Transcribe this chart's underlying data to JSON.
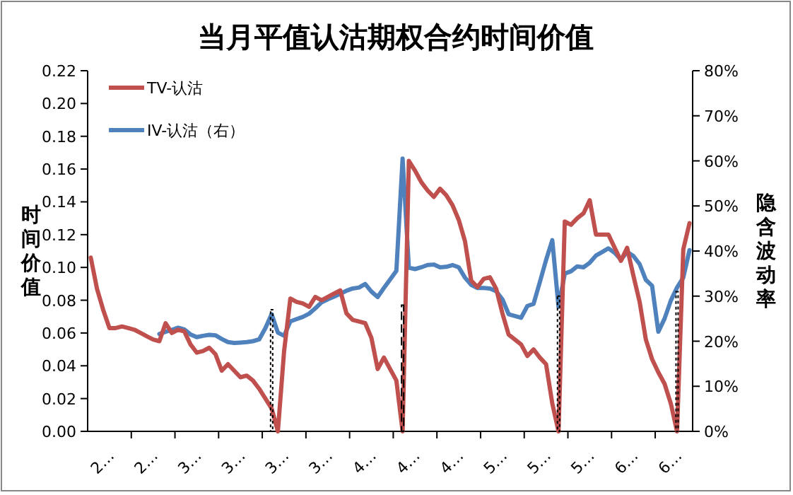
{
  "chart_data": {
    "type": "line",
    "title": "当月平值认沽期权合约时间价值",
    "ylabel": "时间价值",
    "y2label": "隐含波动率",
    "legend": "top left",
    "categories": [
      null,
      null,
      null,
      "2…",
      null,
      null,
      null,
      null,
      null,
      null,
      "2…",
      null,
      null,
      null,
      null,
      null,
      null,
      "3…",
      null,
      null,
      null,
      null,
      null,
      null,
      "3…",
      null,
      null,
      null,
      null,
      null,
      null,
      "3…",
      null,
      null,
      null,
      null,
      null,
      null,
      "3…",
      null,
      null,
      null,
      null,
      null,
      null,
      "4…",
      null,
      null,
      null,
      null,
      null,
      null,
      "4…",
      null,
      null,
      null,
      null,
      null,
      null,
      "4…",
      null,
      null,
      null,
      null,
      null,
      null,
      "5…",
      null,
      null,
      null,
      null,
      null,
      null,
      "5…",
      null,
      null,
      null,
      null,
      null,
      null,
      "5…",
      null,
      null,
      null,
      null,
      null,
      null,
      "6…",
      null,
      null,
      null,
      null,
      null,
      null,
      "6…",
      null,
      null
    ],
    "ylim": [
      0,
      0.22
    ],
    "yticks": [
      {
        "value": 0,
        "label": "0.00"
      },
      {
        "value": 0.02,
        "label": "0.02"
      },
      {
        "value": 0.04,
        "label": "0.04"
      },
      {
        "value": 0.06,
        "label": "0.06"
      },
      {
        "value": 0.08,
        "label": "0.08"
      },
      {
        "value": 0.1,
        "label": "0.10"
      },
      {
        "value": 0.12,
        "label": "0.12"
      },
      {
        "value": 0.14,
        "label": "0.14"
      },
      {
        "value": 0.16,
        "label": "0.16"
      },
      {
        "value": 0.18,
        "label": "0.18"
      },
      {
        "value": 0.2,
        "label": "0.20"
      },
      {
        "value": 0.22,
        "label": "0.22"
      }
    ],
    "y2lim": [
      0,
      80
    ],
    "y2ticks": [
      {
        "value": 0,
        "label": "0%"
      },
      {
        "value": 10,
        "label": "10%"
      },
      {
        "value": 20,
        "label": "20%"
      },
      {
        "value": 30,
        "label": "30%"
      },
      {
        "value": 40,
        "label": "40%"
      },
      {
        "value": 50,
        "label": "50%"
      },
      {
        "value": 60,
        "label": "60%"
      },
      {
        "value": 70,
        "label": "70%"
      },
      {
        "value": 80,
        "label": "80%"
      }
    ],
    "series": [
      {
        "name": "TV-认沽",
        "color": "#c0504d",
        "values": [
          0.106,
          0.087,
          0.074,
          0.063,
          0.063,
          0.064,
          0.063,
          0.062,
          0.06,
          0.058,
          0.056,
          0.055,
          0.066,
          0.06,
          0.062,
          0.061,
          0.053,
          0.048,
          0.049,
          0.051,
          0.047,
          0.037,
          0.041,
          0.037,
          0.033,
          0.034,
          0.031,
          0.026,
          0.02,
          0.014,
          0,
          0.049,
          0.081,
          0.079,
          0.078,
          0.076,
          0.082,
          0.08,
          0.082,
          0.084,
          0.086,
          0.072,
          0.068,
          0.067,
          0.066,
          0.057,
          0.038,
          0.045,
          0.038,
          0.031,
          0,
          0.165,
          0.159,
          0.152,
          0.147,
          0.143,
          0.148,
          0.144,
          0.138,
          0.129,
          0.116,
          0.092,
          0.088,
          0.093,
          0.094,
          0.087,
          0.072,
          0.059,
          0.056,
          0.053,
          0.046,
          0.05,
          0.045,
          0.041,
          0.017,
          0,
          0.128,
          0.126,
          0.13,
          0.133,
          0.141,
          0.12,
          0.12,
          0.12,
          0.112,
          0.104,
          0.112,
          0.095,
          0.079,
          0.056,
          0.044,
          0.036,
          0.029,
          0.017,
          0,
          0.111,
          0.127
        ]
      },
      {
        "name": "IV-认沽（右）",
        "color": "#4f81bd",
        "axis": "y2",
        "values": [
          null,
          null,
          null,
          null,
          null,
          null,
          null,
          null,
          null,
          null,
          null,
          21.6,
          22.1,
          22.5,
          23.0,
          22.6,
          21.5,
          20.9,
          21.2,
          21.4,
          21.3,
          20.5,
          19.8,
          19.6,
          19.7,
          19.8,
          20.0,
          20.4,
          22.9,
          26.0,
          21.9,
          21.2,
          24.4,
          24.9,
          25.4,
          26.1,
          27.3,
          28.6,
          29.3,
          29.9,
          30.5,
          31.2,
          31.7,
          31.9,
          32.7,
          31.0,
          29.8,
          31.8,
          33.7,
          35.6,
          60.5,
          36.3,
          36.0,
          36.4,
          36.9,
          37.0,
          36.4,
          36.5,
          36.9,
          36.4,
          34.1,
          32.5,
          31.8,
          31.8,
          31.7,
          31.1,
          29.3,
          26.0,
          25.6,
          25.2,
          27.8,
          28.3,
          33.1,
          38.0,
          42.4,
          27.6,
          35.0,
          35.5,
          36.6,
          36.4,
          37.4,
          39.0,
          39.8,
          40.6,
          39.6,
          38.1,
          39.8,
          38.9,
          37.1,
          33.6,
          32.3,
          22.1,
          25.0,
          29.0,
          31.9,
          34.1,
          40.2
        ]
      },
      {
        "type": "bar",
        "color": "#000000",
        "axis": "y2",
        "line_style": "dotted",
        "values": [
          null,
          null,
          null,
          null,
          null,
          null,
          null,
          null,
          null,
          null,
          null,
          null,
          null,
          null,
          null,
          null,
          null,
          null,
          null,
          null,
          null,
          null,
          null,
          null,
          null,
          null,
          null,
          null,
          null,
          27,
          null,
          null,
          null,
          null,
          null,
          null,
          null,
          null,
          null,
          null,
          null,
          null,
          null,
          null,
          null,
          null,
          null,
          null,
          null,
          null,
          null,
          null,
          null,
          null,
          null,
          null,
          null,
          null,
          null,
          null,
          null,
          null,
          null,
          null,
          null,
          null,
          null,
          null,
          null,
          null,
          null,
          null,
          null,
          null,
          null,
          30,
          null,
          null,
          null,
          null,
          null,
          null,
          null,
          null,
          null,
          null,
          null,
          null,
          null,
          null,
          null,
          null,
          null,
          null,
          31,
          null,
          null
        ]
      },
      {
        "type": "bar",
        "color": "#000000",
        "axis": "y2",
        "line_style": "dashed",
        "values": [
          null,
          null,
          null,
          null,
          null,
          null,
          null,
          null,
          null,
          null,
          null,
          null,
          null,
          null,
          null,
          null,
          null,
          null,
          null,
          null,
          null,
          null,
          null,
          null,
          null,
          null,
          null,
          null,
          null,
          null,
          null,
          null,
          null,
          null,
          null,
          null,
          null,
          null,
          null,
          null,
          null,
          null,
          null,
          null,
          null,
          null,
          null,
          null,
          null,
          null,
          28,
          null,
          null,
          null,
          null,
          null,
          null,
          null,
          null,
          null,
          null,
          null,
          null,
          null,
          null,
          null,
          null,
          null,
          null,
          null,
          null,
          null,
          null,
          null,
          null,
          null,
          null,
          null,
          null,
          null,
          null,
          null,
          null,
          null,
          null,
          null,
          null,
          null,
          null,
          null,
          null,
          null,
          null,
          null,
          null,
          null,
          null
        ]
      }
    ]
  }
}
